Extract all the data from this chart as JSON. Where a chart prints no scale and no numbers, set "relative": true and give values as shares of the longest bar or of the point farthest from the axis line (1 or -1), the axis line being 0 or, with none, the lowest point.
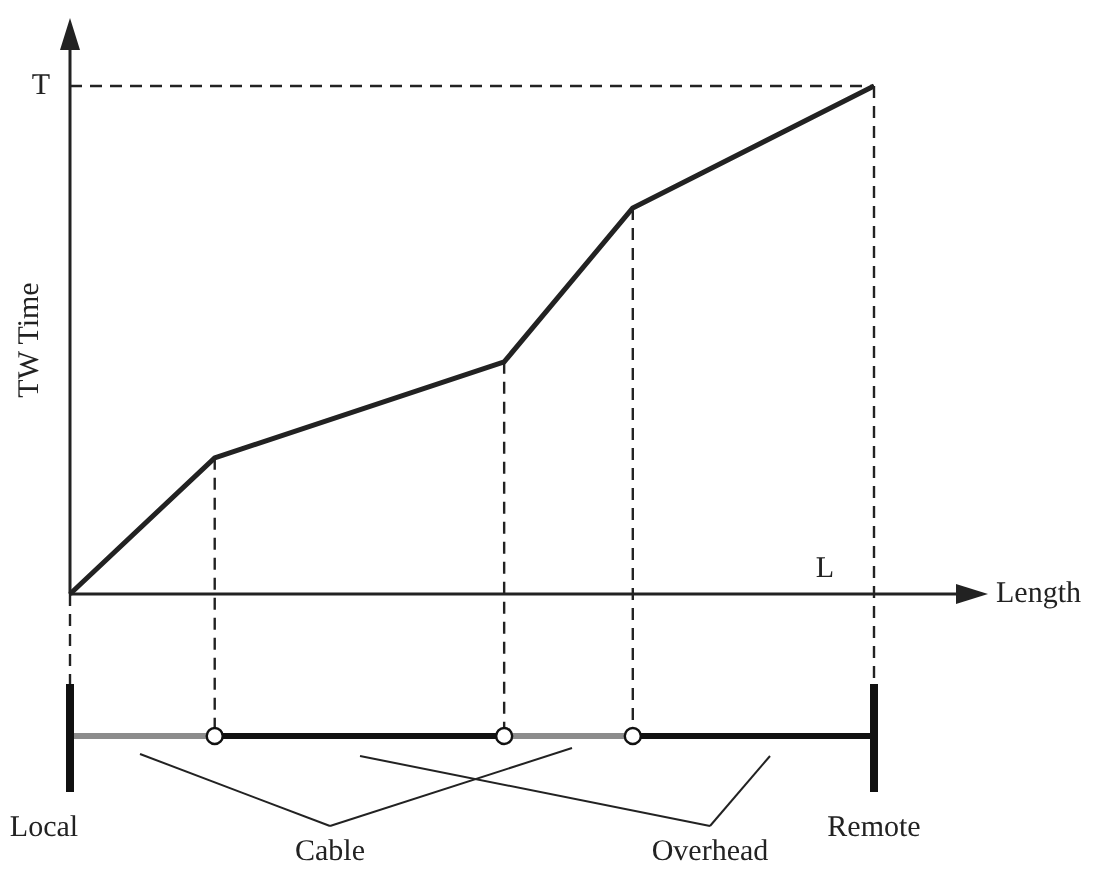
{
  "chart_data": {
    "type": "line",
    "relative": true,
    "xlabel": "Length",
    "ylabel": "TW Time",
    "marker": "none",
    "categories": [
      null,
      null,
      null,
      null,
      null,
      null,
      null,
      null,
      null,
      null,
      null,
      null,
      null,
      null,
      null,
      null,
      null,
      null,
      null,
      null,
      null,
      null,
      null,
      null,
      null,
      null,
      null,
      null,
      null,
      null,
      null,
      null,
      null,
      null,
      null,
      null,
      null,
      null,
      null,
      null,
      null,
      null,
      null,
      null,
      null,
      null,
      null,
      null,
      null,
      null,
      null
    ],
    "series": [
      {
        "color": "#222222",
        "values": [
          0,
          null,
          null,
          null,
          null,
          null,
          null,
          null,
          null,
          0.268,
          null,
          null,
          null,
          null,
          null,
          null,
          null,
          null,
          null,
          null,
          null,
          null,
          null,
          null,
          null,
          null,
          null,
          0.457,
          null,
          null,
          null,
          null,
          null,
          null,
          null,
          0.76,
          null,
          null,
          null,
          null,
          null,
          null,
          null,
          null,
          null,
          null,
          null,
          null,
          null,
          null,
          1
        ]
      }
    ],
    "annotations": [
      "T",
      "L",
      "Local",
      "Remote",
      "Cable",
      "Overhead"
    ]
  }
}
